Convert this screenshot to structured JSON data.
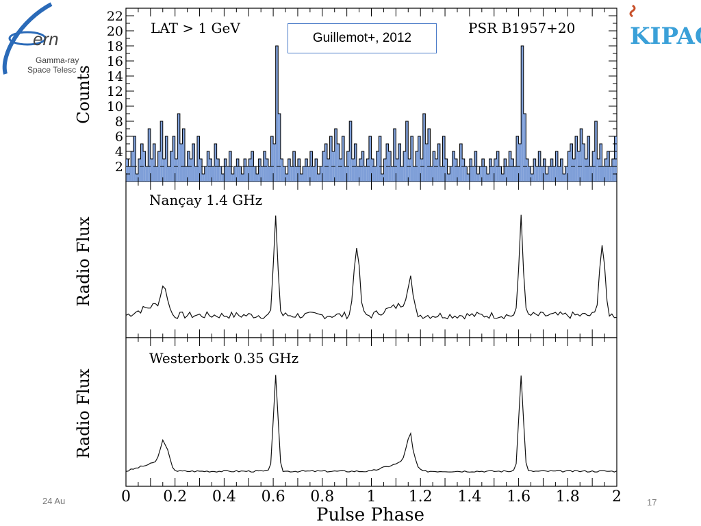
{
  "logos": {
    "fermi_mark": "ern",
    "fermi_line1": "Gamma-ray",
    "fermi_line2": "Space Telesc",
    "kipac": "KIPAC"
  },
  "reference": "Guillemot+, 2012",
  "footer": {
    "date": "24 Au",
    "slide_number": "17"
  },
  "colors": {
    "histogram_fill": "#7f9fd8",
    "line": "#111111",
    "kipac_blue": "#3aa0d8",
    "fermi_blue": "#2060a8"
  },
  "chart_data": [
    {
      "type": "bar",
      "panel_label": "LAT > 1 GeV",
      "source_label": "PSR B1957+20",
      "ylabel": "Counts",
      "ylim": [
        0,
        23
      ],
      "yticks": [
        2,
        4,
        6,
        8,
        10,
        12,
        14,
        16,
        18,
        20,
        22
      ],
      "background_level": 2,
      "x_range": [
        0,
        2
      ],
      "counts_one_cycle": [
        3,
        2,
        4,
        6,
        1,
        3,
        5,
        4,
        2,
        7,
        3,
        5,
        2,
        4,
        8,
        3,
        6,
        2,
        4,
        6,
        3,
        9,
        5,
        7,
        2,
        4,
        3,
        5,
        2,
        6,
        3,
        1,
        2,
        4,
        3,
        2,
        5,
        3,
        2,
        1,
        3,
        2,
        4,
        1,
        2,
        3,
        2,
        1,
        3,
        2,
        3,
        4,
        2,
        1,
        3,
        2,
        4,
        3,
        2,
        6,
        5,
        18,
        9,
        3,
        2,
        1,
        3,
        2,
        4,
        2,
        3,
        1,
        2,
        3,
        2,
        4,
        2,
        3,
        1,
        2,
        4,
        5,
        3,
        6,
        4,
        7,
        5,
        3,
        6,
        2,
        4,
        8,
        3,
        5,
        2,
        3,
        4,
        2,
        3,
        6
      ]
    },
    {
      "type": "line",
      "panel_label": "Nançay 1.4 GHz",
      "ylabel": "Radio Flux",
      "x_range": [
        0,
        2
      ],
      "peaks_phase": [
        0.16,
        0.61,
        0.94
      ]
    },
    {
      "type": "line",
      "panel_label": "Westerbork 0.35 GHz",
      "ylabel": "Radio Flux",
      "xlabel": "Pulse Phase",
      "x_range": [
        0,
        2
      ],
      "xticks": [
        "0",
        "0.2",
        "0.4",
        "0.6",
        "0.8",
        "1",
        "1.2",
        "1.4",
        "1.6",
        "1.8",
        "2"
      ],
      "peaks_phase": [
        0.16,
        0.61
      ]
    }
  ]
}
